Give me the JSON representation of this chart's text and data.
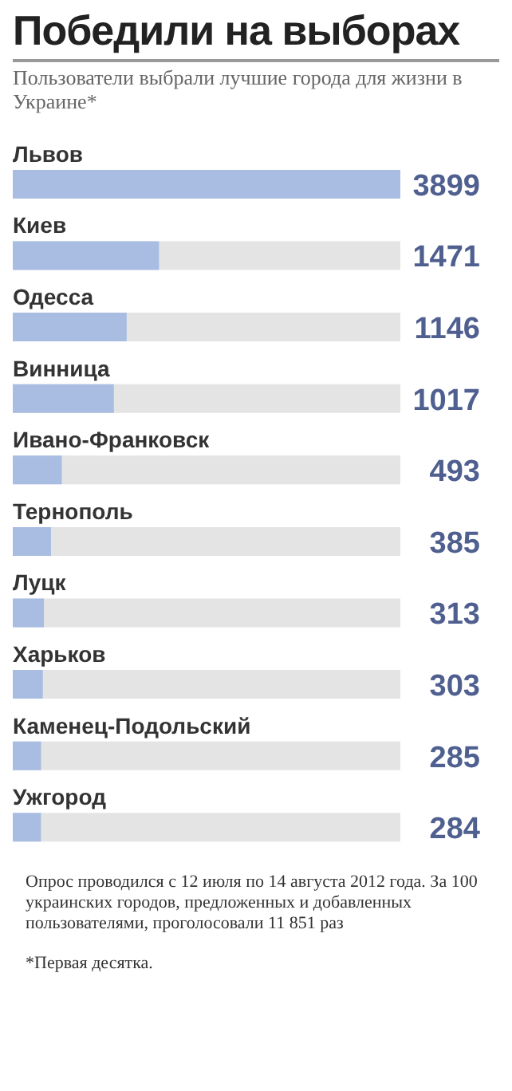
{
  "chart_data": {
    "type": "bar",
    "orientation": "horizontal",
    "title": "Победили на выборах",
    "subtitle": "Пользователи выбрали лучшие города для жизни в Украине*",
    "categories": [
      "Львов",
      "Киев",
      "Одесса",
      "Винница",
      "Ивано-Франковск",
      "Тернополь",
      "Луцк",
      "Харьков",
      "Каменец-Подольский",
      "Ужгород"
    ],
    "values": [
      3899,
      1471,
      1146,
      1017,
      493,
      385,
      313,
      303,
      285,
      284
    ],
    "color": "#a9bde3",
    "data_labels": true,
    "annotations": [
      "Опрос проводился с 12 июля по 14 августа 2012 года. За 100 украинских городов, предложенных и добавленных пользователями, проголосовали 11 851 раз",
      "*Первая десятка."
    ]
  }
}
